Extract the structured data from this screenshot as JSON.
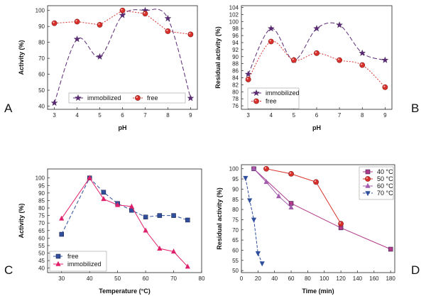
{
  "chart_data": [
    {
      "panel": "A",
      "type": "line",
      "xlabel": "pH",
      "ylabel": "Activity (%)",
      "xlim": [
        2.7,
        9.3
      ],
      "ylim": [
        38,
        103
      ],
      "xticks": [
        3,
        4,
        5,
        6,
        7,
        8,
        9
      ],
      "yticks": [
        40,
        50,
        60,
        70,
        80,
        90,
        100
      ],
      "legend_position": "bottom-center-horizontal",
      "series": [
        {
          "name": "immobilized",
          "marker": "star",
          "color": "#5b2a77",
          "dash": "6,3",
          "smooth": true,
          "x": [
            3,
            4,
            5,
            6,
            7,
            8,
            9
          ],
          "y": [
            42,
            82,
            71,
            97,
            100,
            95,
            45
          ]
        },
        {
          "name": "free",
          "marker": "circle",
          "color": "#d9302b",
          "dash": "2,2",
          "smooth": false,
          "x": [
            3,
            4,
            5,
            6,
            7,
            8,
            9
          ],
          "y": [
            92,
            93,
            91,
            100,
            98,
            87,
            85
          ]
        }
      ]
    },
    {
      "panel": "B",
      "type": "line",
      "xlabel": "pH",
      "ylabel": "Residual activity (%)",
      "xlim": [
        2.7,
        9.3
      ],
      "ylim": [
        75,
        104.5
      ],
      "xticks": [
        3,
        4,
        5,
        6,
        7,
        8,
        9
      ],
      "yticks": [
        76,
        78,
        80,
        82,
        84,
        86,
        88,
        90,
        92,
        94,
        96,
        98,
        100,
        102,
        104
      ],
      "legend_position": "bottom-left",
      "series": [
        {
          "name": "immobilized",
          "marker": "star",
          "color": "#5b2a77",
          "dash": "6,3",
          "smooth": true,
          "x": [
            3,
            4,
            5,
            6,
            7,
            8,
            9
          ],
          "y": [
            85,
            98,
            89,
            98,
            99,
            91,
            89
          ]
        },
        {
          "name": "free",
          "marker": "circle",
          "color": "#d9302b",
          "dash": "2,2",
          "smooth": true,
          "x": [
            3,
            4,
            5,
            6,
            7,
            8,
            9
          ],
          "y": [
            83.5,
            94.3,
            89,
            91,
            89,
            87.6,
            81.3
          ]
        }
      ]
    },
    {
      "panel": "C",
      "type": "line",
      "xlabel": "Temperature (°C)",
      "ylabel": "Activity (%)",
      "xlim": [
        25,
        80
      ],
      "ylim": [
        37,
        106
      ],
      "xticks": [
        30,
        40,
        50,
        60,
        70,
        80
      ],
      "yticks": [
        40,
        45,
        50,
        55,
        60,
        65,
        70,
        75,
        80,
        85,
        90,
        95,
        100
      ],
      "legend_position": "bottom-left",
      "series": [
        {
          "name": "free",
          "marker": "square",
          "color": "#2f4e9c",
          "dash": "5,3",
          "smooth": false,
          "x": [
            30,
            40,
            45,
            50,
            55,
            60,
            65,
            70,
            75
          ],
          "y": [
            62.5,
            100,
            90.5,
            83,
            78.5,
            74,
            75,
            75,
            72
          ]
        },
        {
          "name": "immobilized",
          "marker": "triangle",
          "color": "#e0206a",
          "dash": "",
          "smooth": false,
          "x": [
            30,
            40,
            45,
            50,
            55,
            60,
            65,
            70,
            75
          ],
          "y": [
            73,
            100,
            86,
            82,
            81,
            65,
            53,
            51,
            41
          ]
        }
      ]
    },
    {
      "panel": "D",
      "type": "line",
      "xlabel": "Time (min)",
      "ylabel": "Residual activity (%)",
      "xlim": [
        0,
        185
      ],
      "ylim": [
        49,
        102
      ],
      "xticks": [
        0,
        20,
        40,
        60,
        80,
        100,
        120,
        140,
        160,
        180
      ],
      "yticks": [
        50,
        55,
        60,
        65,
        70,
        75,
        80,
        85,
        90,
        95,
        100
      ],
      "legend_position": "top-right",
      "series": [
        {
          "name": "40 °C",
          "marker": "square",
          "color": "#b03a8a",
          "dash": "",
          "smooth": false,
          "x": [
            15,
            60,
            120,
            180
          ],
          "y": [
            100,
            83,
            71,
            60.5
          ]
        },
        {
          "name": "50 °C",
          "marker": "circle",
          "color": "#d9302b",
          "dash": "",
          "smooth": false,
          "x": [
            30,
            60,
            90,
            120
          ],
          "y": [
            100,
            97.5,
            93.5,
            73
          ]
        },
        {
          "name": "60 °C",
          "marker": "triangle",
          "color": "#a35bb0",
          "dash": "",
          "smooth": false,
          "x": [
            15,
            30,
            45,
            60
          ],
          "y": [
            100,
            93.5,
            86.5,
            81
          ]
        },
        {
          "name": "70 °C",
          "marker": "triangle-down",
          "color": "#2f4e9c",
          "dash": "4,2",
          "smooth": false,
          "x": [
            5,
            10,
            15,
            20,
            25
          ],
          "y": [
            95.5,
            84.5,
            75,
            58.5,
            53.5
          ]
        }
      ]
    }
  ]
}
